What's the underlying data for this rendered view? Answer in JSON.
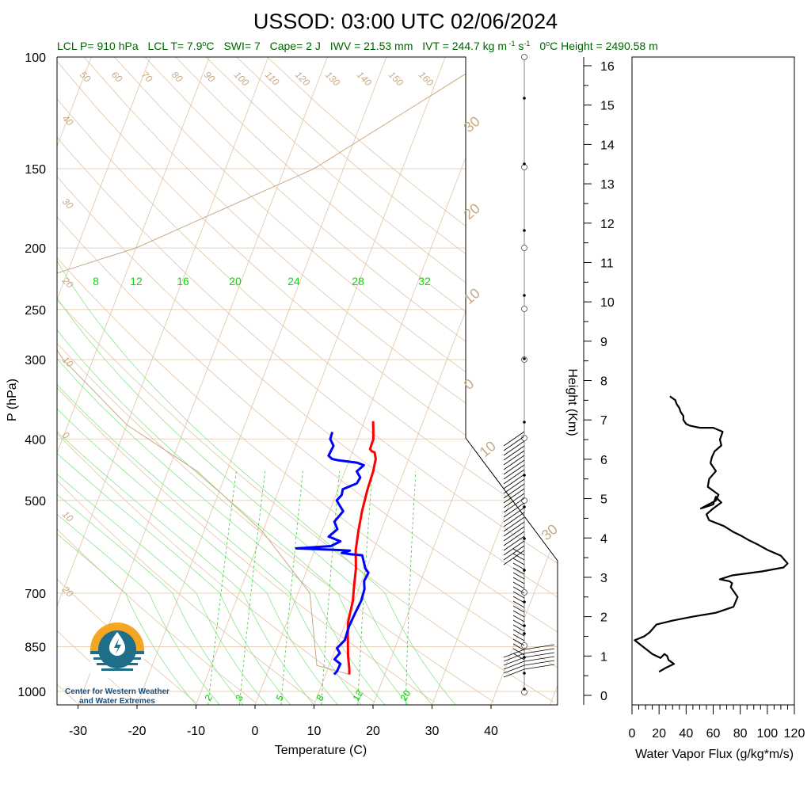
{
  "header": {
    "title": "USSOD: 03:00 UTC 02/06/2024",
    "subtitle_parts": {
      "lcl_p": "LCL P= 910 hPa",
      "lcl_t": "LCL T= 7.9",
      "swi": "SWI= 7",
      "cape": "Cape= 2 J",
      "iwv": "IWV = 21.53 mm",
      "ivt": "IVT = 244.7 kg m",
      "zero_height": "0",
      "zero_height_rest": "C Height = 2490.58 m"
    }
  },
  "logo": {
    "line1": "Center for Western Weather",
    "line2": "and Water Extremes",
    "icon": "water-drop-sun-logo-icon"
  },
  "chart_data": [
    {
      "type": "line",
      "title": "USSOD: 03:00 UTC 02/06/2024",
      "xlabel": "Temperature (C)",
      "ylabel": "P (hPa)",
      "x_ticks": [
        "-30",
        "-20",
        "-10",
        "0",
        "10",
        "20",
        "30",
        "40"
      ],
      "x_tick_values": [
        -30,
        -20,
        -10,
        0,
        10,
        20,
        30,
        40
      ],
      "y_ticks": [
        "100",
        "150",
        "200",
        "250",
        "300",
        "400",
        "500",
        "700",
        "850",
        "1000"
      ],
      "y_tick_values": [
        100,
        150,
        200,
        250,
        300,
        400,
        500,
        700,
        850,
        1000
      ],
      "y_scale": "log",
      "skew": "skew-T",
      "series": [
        {
          "color": "#ff0000",
          "x": [
            14.0,
            13.6,
            12.6,
            11.5,
            10.4,
            9.8,
            9.0,
            8.2,
            7.0,
            6.2,
            5.5,
            5.0,
            4.8,
            4.4,
            3.8,
            3.2,
            2.8,
            2.7,
            2.0,
            1.5
          ],
          "y": [
            940,
            920,
            880,
            830,
            780,
            720,
            680,
            640,
            600,
            560,
            520,
            480,
            450,
            430,
            420,
            418,
            415,
            400,
            385,
            375
          ]
        },
        {
          "color": "#0000ff",
          "x": [
            11.4,
            11.7,
            11.8,
            10.5,
            11.0,
            10.2,
            11.0,
            10.8,
            11.0,
            11.2,
            11.0,
            10.4,
            10.6,
            9.8,
            8.4,
            6.5,
            4.8,
            6.0,
            3.4,
            -3.2,
            2.5,
            3.8,
            1.5,
            2.5,
            1.5,
            2.3,
            0.5,
            1.0,
            0.8,
            2.8,
            3.0,
            2.0,
            2.8,
            1.5,
            -2.0,
            -3.0,
            -3.8,
            -3.6,
            -4.6,
            -4.7
          ],
          "y": [
            940,
            930,
            905,
            890,
            870,
            855,
            830,
            790,
            750,
            720,
            690,
            670,
            650,
            640,
            610,
            608,
            605,
            600,
            598,
            595,
            590,
            580,
            570,
            555,
            540,
            520,
            500,
            490,
            480,
            470,
            460,
            450,
            440,
            436,
            432,
            430,
            425,
            410,
            400,
            390
          ]
        }
      ],
      "isotherm_labels_top": [
        "50",
        "60",
        "70",
        "80",
        "90",
        "100",
        "110",
        "120",
        "130",
        "140",
        "150",
        "160"
      ],
      "isotherm_labels_left": [
        "40",
        "30",
        "20",
        "10",
        "0",
        "10",
        "20"
      ],
      "isotherm_labels_right": [
        "30",
        "20",
        "10",
        "0",
        "10",
        "30"
      ],
      "mixing_ratio_labels": [
        "2",
        "3",
        "5",
        "8",
        "12",
        "20"
      ],
      "theta_e_labels": [
        "8",
        "12",
        "16",
        "20",
        "24",
        "28",
        "32"
      ],
      "grid": true
    },
    {
      "type": "line",
      "xlabel": "Water Vapor Flux (g/kg*m/s)",
      "ylabel": "Height (Km)",
      "x_ticks": [
        "0",
        "20",
        "40",
        "60",
        "80",
        "100",
        "120"
      ],
      "x_tick_values": [
        0,
        20,
        40,
        60,
        80,
        100,
        120
      ],
      "y_ticks": [
        "0",
        "1",
        "2",
        "3",
        "4",
        "5",
        "6",
        "7",
        "8",
        "9",
        "10",
        "11",
        "12",
        "13",
        "14",
        "15",
        "16"
      ],
      "y_tick_values": [
        0,
        1,
        2,
        3,
        4,
        5,
        6,
        7,
        8,
        9,
        10,
        11,
        12,
        13,
        14,
        15,
        16
      ],
      "xlim": [
        0,
        120
      ],
      "ylim": [
        -0.3,
        16.5
      ],
      "series": [
        {
          "color": "#000000",
          "x": [
            20,
            25,
            31,
            27,
            26,
            24,
            21,
            15,
            2,
            9,
            13,
            18,
            30,
            45,
            62,
            75,
            78,
            75,
            73,
            74,
            72,
            65,
            74,
            96,
            112,
            115,
            110,
            100,
            92,
            86,
            81,
            75,
            68,
            57,
            55,
            60,
            66,
            63,
            62,
            60,
            51,
            62,
            64,
            60,
            56,
            57,
            62,
            58,
            59,
            61,
            66,
            65,
            67,
            60,
            50,
            43,
            40,
            38,
            38,
            36,
            35,
            33,
            32,
            30,
            28
          ],
          "y": [
            0.6,
            0.7,
            0.8,
            0.9,
            1.0,
            1.05,
            0.95,
            1.05,
            1.4,
            1.5,
            1.6,
            1.8,
            1.9,
            2.0,
            2.1,
            2.25,
            2.5,
            2.65,
            2.75,
            2.85,
            2.9,
            2.95,
            3.05,
            3.15,
            3.25,
            3.35,
            3.55,
            3.7,
            3.85,
            3.95,
            4.05,
            4.15,
            4.3,
            4.45,
            4.6,
            4.75,
            4.9,
            5.0,
            5.05,
            4.85,
            4.75,
            4.95,
            5.1,
            5.2,
            5.3,
            5.5,
            5.7,
            5.9,
            6.05,
            6.2,
            6.35,
            6.5,
            6.7,
            6.8,
            6.8,
            6.85,
            6.9,
            7.0,
            7.1,
            7.2,
            7.3,
            7.4,
            7.5,
            7.55,
            7.6
          ]
        }
      ]
    }
  ]
}
